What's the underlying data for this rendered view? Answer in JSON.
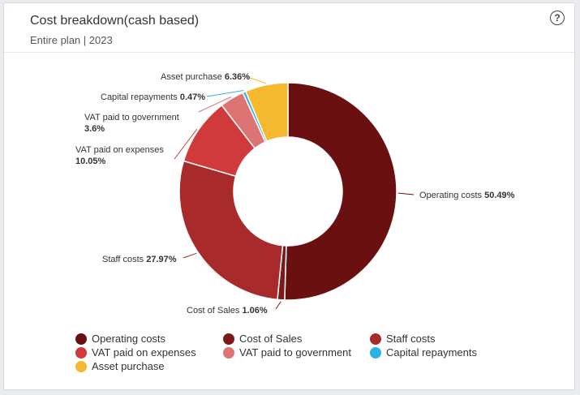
{
  "header": {
    "title": "Cost breakdown(cash based)",
    "subtitle": "Entire plan | 2023",
    "help_label": "?"
  },
  "chart_data": {
    "type": "pie",
    "title": "Cost breakdown(cash based)",
    "subtitle": "Entire plan | 2023",
    "donut": true,
    "legend_position": "bottom",
    "slices": [
      {
        "name": "Operating costs",
        "value": 50.49,
        "color": "#6b1010",
        "label_lines": [
          "Operating costs 50.49%"
        ]
      },
      {
        "name": "Cost of Sales",
        "value": 1.06,
        "color": "#7a1a1a",
        "label_lines": [
          "Cost of Sales 1.06%"
        ]
      },
      {
        "name": "Staff costs",
        "value": 27.97,
        "color": "#a82a2a",
        "label_lines": [
          "Staff costs 27.97%"
        ]
      },
      {
        "name": "VAT paid on expenses",
        "value": 10.05,
        "color": "#d03a3a",
        "label_lines": [
          "VAT paid on expenses",
          "10.05%"
        ]
      },
      {
        "name": "VAT paid to government",
        "value": 3.6,
        "color": "#de7373",
        "label_lines": [
          "VAT paid to government",
          "3.6%"
        ]
      },
      {
        "name": "Capital repayments",
        "value": 0.47,
        "color": "#2bb3e8",
        "label_lines": [
          "Capital repayments 0.47%"
        ]
      },
      {
        "name": "Asset purchase",
        "value": 6.36,
        "color": "#f5b82e",
        "label_lines": [
          "Asset purchase 6.36%"
        ]
      }
    ]
  }
}
